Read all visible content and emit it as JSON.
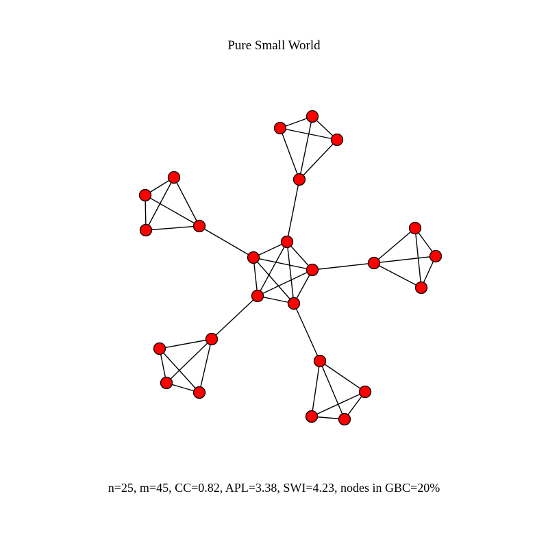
{
  "title": "Pure Small World",
  "caption": "n=25, m=45, CC=0.82, APL=3.38, SWI=4.23, nodes in GBC=20%",
  "node_fill": "#ff0000",
  "node_stroke": "#000000",
  "edge_color": "#000000"
}
